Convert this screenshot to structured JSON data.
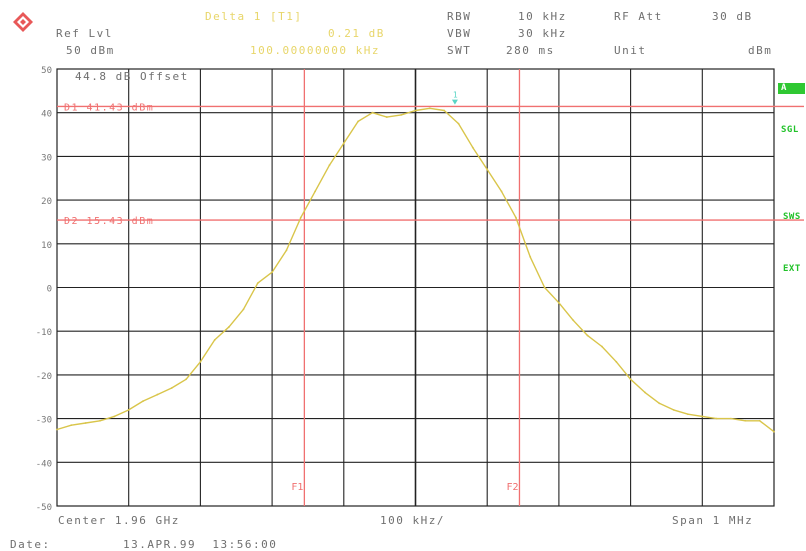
{
  "header": {
    "logo_icon": "rohde-schwarz-logo-icon",
    "ref_lvl_label": "Ref Lvl",
    "ref_lvl_value": "50 dBm",
    "marker_label": "Delta 1 [T1]",
    "marker_level": "0.21 dB",
    "marker_freq": "100.00000000 kHz",
    "rbw_label": "RBW",
    "rbw_value": "10 kHz",
    "vbw_label": "VBW",
    "vbw_value": "30 kHz",
    "swt_label": "SWT",
    "swt_value": "280 ms",
    "rf_att_label": "RF Att",
    "rf_att_value": "30 dB",
    "unit_label": "Unit",
    "unit_value": "dBm"
  },
  "offset_label": "44.8 dB Offset",
  "side_labels": {
    "a": "A",
    "sgl": "SGL",
    "sws": "SWS",
    "ext": "EXT"
  },
  "footer": {
    "center": "Center 1.96 GHz",
    "div": "100 kHz/",
    "span": "Span 1 MHz",
    "date_label": "Date:",
    "date_value": "13.APR.99  13:56:00"
  },
  "chart_data": {
    "type": "line",
    "title": "",
    "xlabel": "",
    "ylabel": "",
    "xlim": [
      -500,
      500
    ],
    "x_unit": "kHz offset from center",
    "ylim": [
      -50,
      50
    ],
    "y_ticks": [
      50,
      40,
      30,
      20,
      10,
      0,
      -10,
      -20,
      -30,
      -40,
      -50
    ],
    "y_tick_labels": [
      "50",
      "40",
      "30",
      "20",
      "10",
      "0",
      "-10",
      "-20",
      "-30",
      "-40",
      "-50"
    ],
    "grid": true,
    "reference_lines": [
      {
        "label": "D1 41.43 dBm",
        "y": 41.43,
        "color": "#f07070"
      },
      {
        "label": "D2 15.43 dBm",
        "y": 15.43,
        "color": "#f07070"
      }
    ],
    "frequency_lines": [
      {
        "label": "F1",
        "x": -155,
        "color": "#f07070"
      },
      {
        "label": "F2",
        "x": 145,
        "color": "#f07070"
      }
    ],
    "marker": {
      "label": "1",
      "x": 55,
      "y": 41.4
    },
    "series": [
      {
        "color": "#d9c54a",
        "x": [
          -500,
          -480,
          -460,
          -440,
          -420,
          -400,
          -380,
          -360,
          -340,
          -320,
          -300,
          -280,
          -260,
          -240,
          -220,
          -200,
          -180,
          -160,
          -140,
          -120,
          -100,
          -80,
          -60,
          -40,
          -20,
          0,
          20,
          40,
          60,
          80,
          100,
          120,
          140,
          160,
          180,
          200,
          220,
          240,
          260,
          280,
          300,
          320,
          340,
          360,
          380,
          400,
          420,
          440,
          460,
          480,
          500
        ],
        "y": [
          -32.5,
          -31.5,
          -31,
          -30.5,
          -29.5,
          -28,
          -26,
          -24.5,
          -23,
          -21,
          -17,
          -12,
          -9,
          -5,
          1,
          3.5,
          8.5,
          16,
          22,
          28,
          33,
          38,
          40,
          39,
          39.5,
          40.5,
          41,
          40.5,
          37.5,
          32,
          27,
          22,
          16,
          7,
          0,
          -3.5,
          -7.5,
          -11,
          -13.5,
          -17,
          -21,
          -24,
          -26.5,
          -28,
          -29,
          -29.5,
          -30,
          -30,
          -30.5,
          -30.5,
          -33
        ]
      }
    ]
  }
}
